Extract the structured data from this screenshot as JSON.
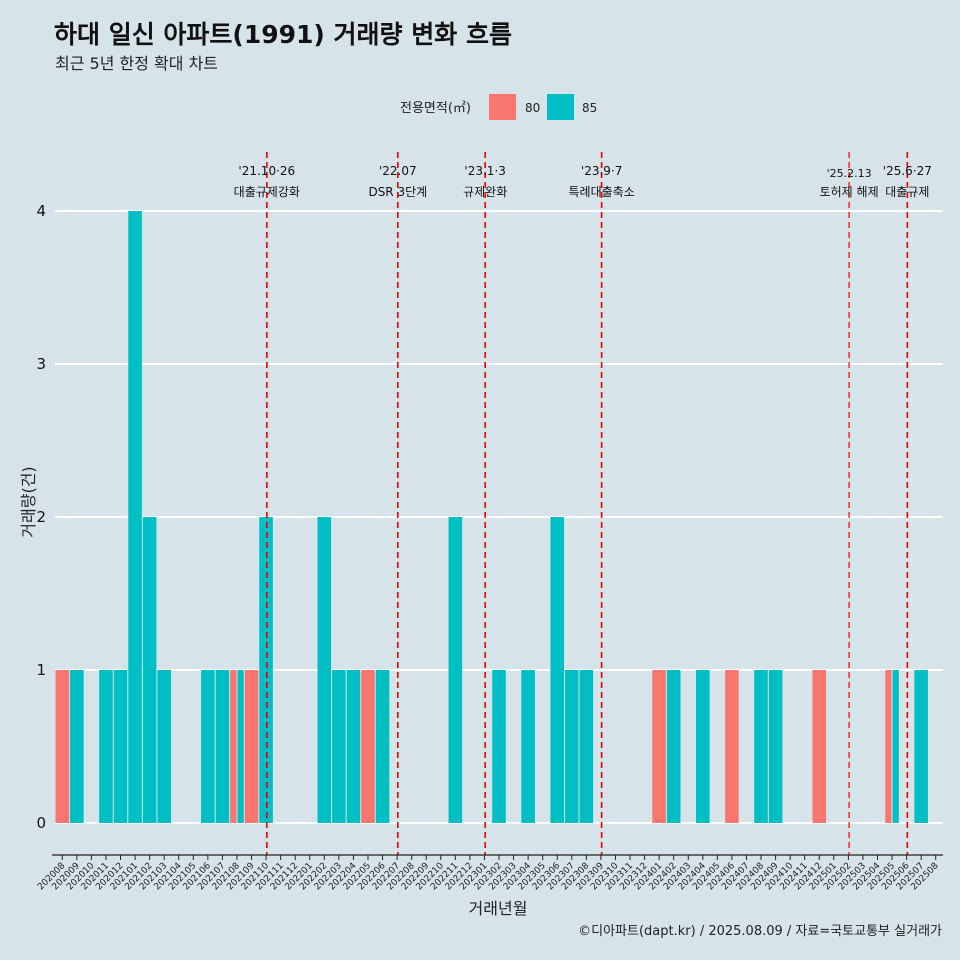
{
  "title": "하대 일신 아파트(1991) 거래량 변화 흐름",
  "subtitle": "최근 5년 한정 확대 차트",
  "legend_title": "전용면적(㎡)",
  "caption": "©디아파트(dapt.kr) / 2025.08.09 / 자료=국토교통부 실거래가",
  "colors": {
    "s80": "#f8766d",
    "s85": "#00bfc4",
    "background": "#d6e3e9",
    "grid": "#ffffff",
    "event_line": "#ee0000"
  },
  "chart_data": {
    "type": "bar",
    "xlabel": "거래년월",
    "ylabel": "거래량(건)",
    "ylim": [
      0,
      4
    ],
    "yticks": [
      0,
      1,
      2,
      3,
      4
    ],
    "grid": true,
    "legend_position": "top",
    "categories": [
      "202008",
      "202009",
      "202010",
      "202011",
      "202012",
      "202101",
      "202102",
      "202103",
      "202104",
      "202105",
      "202106",
      "202107",
      "202108",
      "202109",
      "202110",
      "202111",
      "202112",
      "202201",
      "202202",
      "202203",
      "202204",
      "202205",
      "202206",
      "202207",
      "202208",
      "202209",
      "202210",
      "202211",
      "202212",
      "202301",
      "202302",
      "202303",
      "202304",
      "202305",
      "202306",
      "202307",
      "202308",
      "202309",
      "202310",
      "202311",
      "202312",
      "202401",
      "202402",
      "202403",
      "202404",
      "202405",
      "202406",
      "202407",
      "202408",
      "202409",
      "202410",
      "202411",
      "202412",
      "202501",
      "202502",
      "202503",
      "202504",
      "202505",
      "202506",
      "202507",
      "202508"
    ],
    "bars": [
      {
        "month": "202008",
        "series": "80",
        "value": 1
      },
      {
        "month": "202009",
        "series": "85",
        "value": 1
      },
      {
        "month": "202011",
        "series": "85",
        "value": 1
      },
      {
        "month": "202012",
        "series": "85",
        "value": 1
      },
      {
        "month": "202101",
        "series": "85",
        "value": 4
      },
      {
        "month": "202102",
        "series": "85",
        "value": 2
      },
      {
        "month": "202103",
        "series": "85",
        "value": 1
      },
      {
        "month": "202106",
        "series": "85",
        "value": 1
      },
      {
        "month": "202107",
        "series": "85",
        "value": 1
      },
      {
        "month": "202108",
        "series": "80",
        "value": 1
      },
      {
        "month": "202108",
        "series": "85",
        "value": 1
      },
      {
        "month": "202109",
        "series": "80",
        "value": 1
      },
      {
        "month": "202110",
        "series": "85",
        "value": 2
      },
      {
        "month": "202202",
        "series": "85",
        "value": 2
      },
      {
        "month": "202203",
        "series": "85",
        "value": 1
      },
      {
        "month": "202204",
        "series": "85",
        "value": 1
      },
      {
        "month": "202205",
        "series": "80",
        "value": 1
      },
      {
        "month": "202206",
        "series": "85",
        "value": 1
      },
      {
        "month": "202211",
        "series": "85",
        "value": 2
      },
      {
        "month": "202302",
        "series": "85",
        "value": 1
      },
      {
        "month": "202304",
        "series": "85",
        "value": 1
      },
      {
        "month": "202306",
        "series": "85",
        "value": 2
      },
      {
        "month": "202307",
        "series": "85",
        "value": 1
      },
      {
        "month": "202308",
        "series": "85",
        "value": 1
      },
      {
        "month": "202401",
        "series": "80",
        "value": 1
      },
      {
        "month": "202402",
        "series": "85",
        "value": 1
      },
      {
        "month": "202404",
        "series": "85",
        "value": 1
      },
      {
        "month": "202406",
        "series": "80",
        "value": 1
      },
      {
        "month": "202408",
        "series": "85",
        "value": 1
      },
      {
        "month": "202409",
        "series": "85",
        "value": 1
      },
      {
        "month": "202412",
        "series": "80",
        "value": 1
      },
      {
        "month": "202505",
        "series": "80",
        "value": 1
      },
      {
        "month": "202505",
        "series": "85",
        "value": 1
      },
      {
        "month": "202507",
        "series": "85",
        "value": 1
      }
    ],
    "series": [
      {
        "name": "80"
      },
      {
        "name": "85"
      }
    ],
    "events": [
      {
        "month": "202110",
        "offset": 0.0,
        "date": "'21.10·26",
        "label": "대출규제강화"
      },
      {
        "month": "202207",
        "offset": 0.0,
        "date": "'22.07",
        "label": "DSR 3단계"
      },
      {
        "month": "202301",
        "offset": 0.0,
        "date": "'23.1·3",
        "label": "규제완화"
      },
      {
        "month": "202309",
        "offset": 0.0,
        "date": "'23.9·7",
        "label": "특례대출축소"
      },
      {
        "month": "202502",
        "offset": 0.0,
        "date": "'25.2.13",
        "label": "토허제 해제"
      },
      {
        "month": "202506",
        "offset": 0.0,
        "date": "'25.6·27",
        "label": "대출규제"
      }
    ]
  }
}
